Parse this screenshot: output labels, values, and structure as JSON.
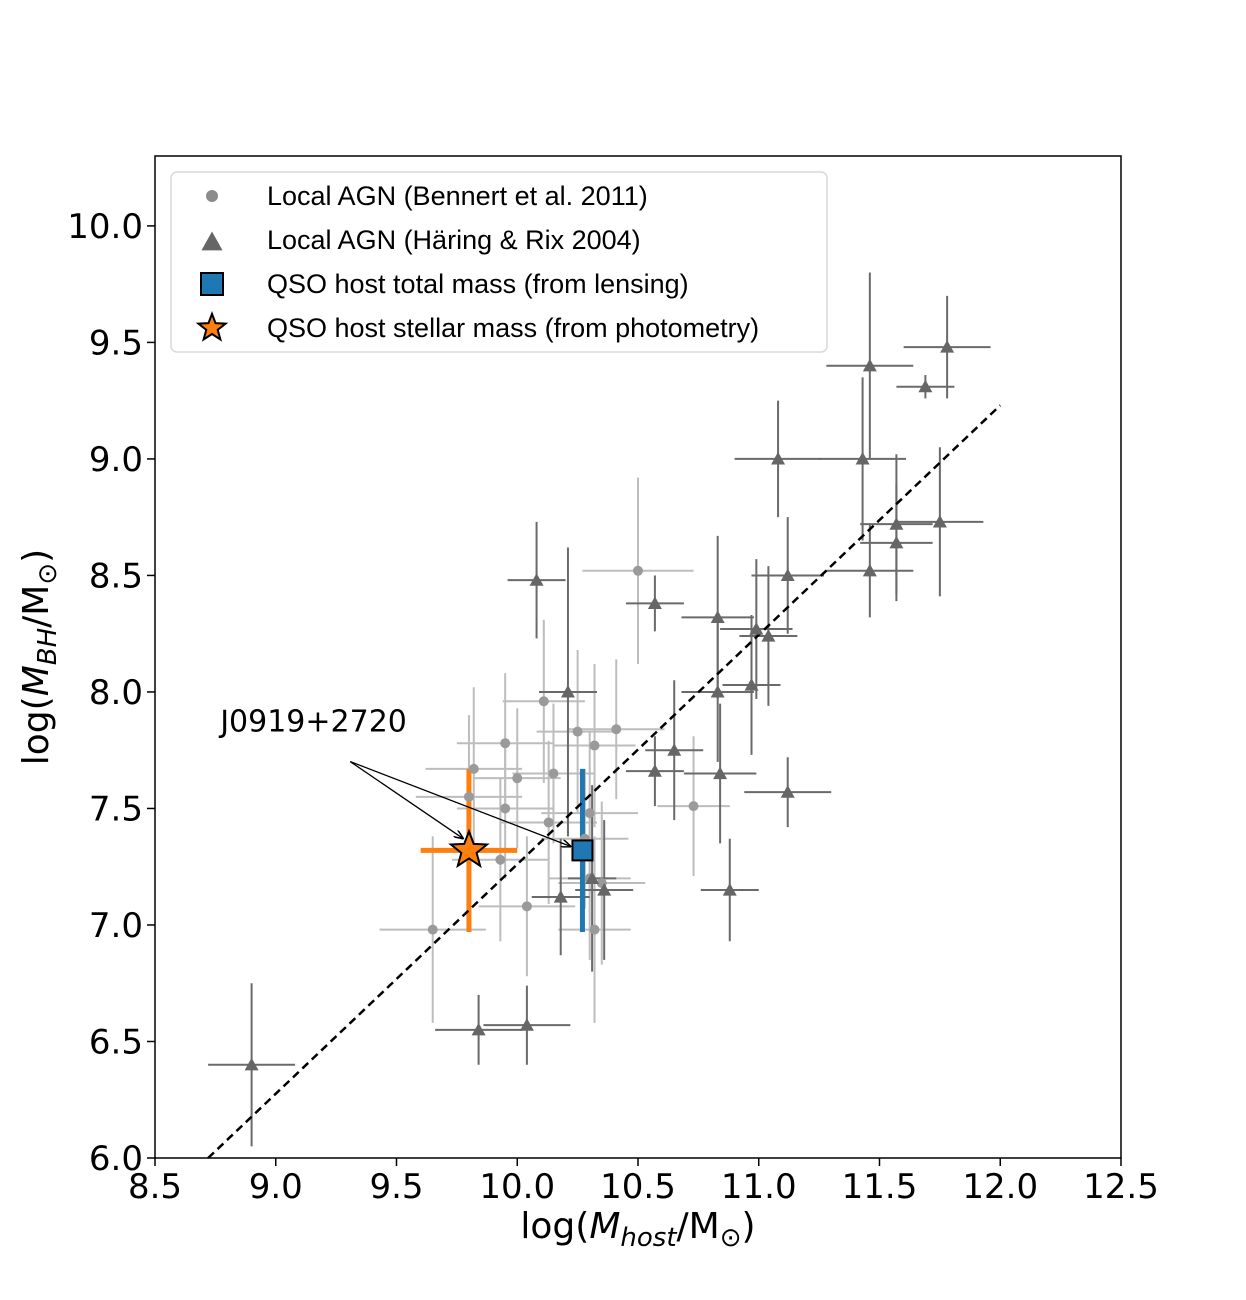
{
  "chart_data": {
    "type": "scatter",
    "xlabel": "log(M_host/M_⊙)",
    "ylabel": "log(M_BH/M_⊙)",
    "xlabel_parts": {
      "pre": "log(",
      "main": "M",
      "sub": "host",
      "post": "/M",
      "post_sub": "⊙",
      "end": ")"
    },
    "ylabel_parts": {
      "pre": "log(",
      "main": "M",
      "sub": "BH",
      "post": "/M",
      "post_sub": "⊙",
      "end": ")"
    },
    "xlim": [
      8.5,
      12.5
    ],
    "ylim": [
      6.0,
      10.3
    ],
    "xticks": [
      "8.5",
      "9.0",
      "9.5",
      "10.0",
      "10.5",
      "11.0",
      "11.5",
      "12.0",
      "12.5"
    ],
    "yticks": [
      "6.0",
      "6.5",
      "7.0",
      "7.5",
      "8.0",
      "8.5",
      "9.0",
      "9.5",
      "10.0"
    ],
    "grid": false,
    "legend_position": "top-left",
    "legend": [
      {
        "label": "Local AGN (Bennert et al. 2011)",
        "marker": "circle",
        "color": "#8c8c8c"
      },
      {
        "label": "Local AGN (Häring & Rix 2004)",
        "marker": "triangle",
        "color": "#666666"
      },
      {
        "label": "QSO host total mass (from lensing)",
        "marker": "square",
        "color": "#1f77b4"
      },
      {
        "label": "QSO host stellar mass (from photometry)",
        "marker": "star",
        "color": "#ff7f0e"
      }
    ],
    "annotation": {
      "text": "J0919+2720",
      "text_x": 8.77,
      "text_y": 7.83
    },
    "relation_line": {
      "style": "dashed",
      "color": "#000000",
      "x": [
        8.72,
        12.0
      ],
      "y": [
        6.0,
        9.23
      ]
    },
    "series": [
      {
        "name": "Local AGN (Bennert et al. 2011)",
        "marker": "circle",
        "color": "#9a9a9a",
        "points": [
          {
            "x": 9.65,
            "y": 6.98,
            "xerr": 0.22,
            "yerr": 0.4
          },
          {
            "x": 9.82,
            "y": 7.67,
            "xerr": 0.2,
            "yerr": 0.35
          },
          {
            "x": 9.8,
            "y": 7.55,
            "xerr": 0.22,
            "yerr": 0.35
          },
          {
            "x": 9.93,
            "y": 7.28,
            "xerr": 0.2,
            "yerr": 0.35
          },
          {
            "x": 9.95,
            "y": 7.5,
            "xerr": 0.2,
            "yerr": 0.3
          },
          {
            "x": 9.95,
            "y": 7.78,
            "xerr": 0.2,
            "yerr": 0.3
          },
          {
            "x": 10.0,
            "y": 7.63,
            "xerr": 0.18,
            "yerr": 0.3
          },
          {
            "x": 10.04,
            "y": 7.08,
            "xerr": 0.2,
            "yerr": 0.3
          },
          {
            "x": 10.11,
            "y": 7.96,
            "xerr": 0.17,
            "yerr": 0.35
          },
          {
            "x": 10.13,
            "y": 7.44,
            "xerr": 0.2,
            "yerr": 0.35
          },
          {
            "x": 10.15,
            "y": 7.65,
            "xerr": 0.17,
            "yerr": 0.3
          },
          {
            "x": 10.25,
            "y": 7.83,
            "xerr": 0.17,
            "yerr": 0.35
          },
          {
            "x": 10.28,
            "y": 7.37,
            "xerr": 0.18,
            "yerr": 0.3
          },
          {
            "x": 10.3,
            "y": 7.48,
            "xerr": 0.2,
            "yerr": 0.35
          },
          {
            "x": 10.32,
            "y": 7.77,
            "xerr": 0.17,
            "yerr": 0.35
          },
          {
            "x": 10.3,
            "y": 7.2,
            "xerr": 0.17,
            "yerr": 0.35
          },
          {
            "x": 10.32,
            "y": 6.98,
            "xerr": 0.15,
            "yerr": 0.4
          },
          {
            "x": 10.35,
            "y": 7.18,
            "xerr": 0.18,
            "yerr": 0.35
          },
          {
            "x": 10.41,
            "y": 7.84,
            "xerr": 0.2,
            "yerr": 0.3
          },
          {
            "x": 10.5,
            "y": 8.52,
            "xerr": 0.23,
            "yerr": 0.4
          },
          {
            "x": 10.73,
            "y": 7.51,
            "xerr": 0.15,
            "yerr": 0.3
          }
        ]
      },
      {
        "name": "Local AGN (Häring & Rix 2004)",
        "marker": "triangle",
        "color": "#666666",
        "points": [
          {
            "x": 8.9,
            "y": 6.4,
            "xerr": 0.18,
            "yerr": 0.35
          },
          {
            "x": 9.84,
            "y": 6.55,
            "xerr": 0.18,
            "yerr": 0.15
          },
          {
            "x": 10.04,
            "y": 6.57,
            "xerr": 0.18,
            "yerr": 0.17
          },
          {
            "x": 10.08,
            "y": 8.48,
            "xerr": 0.12,
            "yerr": 0.25
          },
          {
            "x": 10.18,
            "y": 7.12,
            "xerr": 0.12,
            "yerr": 0.25
          },
          {
            "x": 10.21,
            "y": 8.0,
            "xerr": 0.12,
            "yerr": 0.62
          },
          {
            "x": 10.31,
            "y": 7.2,
            "xerr": 0.1,
            "yerr": 0.4
          },
          {
            "x": 10.36,
            "y": 7.15,
            "xerr": 0.12,
            "yerr": 0.3
          },
          {
            "x": 10.57,
            "y": 8.38,
            "xerr": 0.12,
            "yerr": 0.12
          },
          {
            "x": 10.57,
            "y": 7.66,
            "xerr": 0.12,
            "yerr": 0.15
          },
          {
            "x": 10.65,
            "y": 7.75,
            "xerr": 0.12,
            "yerr": 0.3
          },
          {
            "x": 10.83,
            "y": 8.32,
            "xerr": 0.15,
            "yerr": 0.35
          },
          {
            "x": 10.83,
            "y": 8.0,
            "xerr": 0.15,
            "yerr": 0.3
          },
          {
            "x": 10.84,
            "y": 7.65,
            "xerr": 0.15,
            "yerr": 0.3
          },
          {
            "x": 10.88,
            "y": 7.15,
            "xerr": 0.12,
            "yerr": 0.22
          },
          {
            "x": 10.97,
            "y": 8.03,
            "xerr": 0.12,
            "yerr": 0.3
          },
          {
            "x": 10.99,
            "y": 8.27,
            "xerr": 0.15,
            "yerr": 0.3
          },
          {
            "x": 11.04,
            "y": 8.24,
            "xerr": 0.12,
            "yerr": 0.3
          },
          {
            "x": 11.08,
            "y": 9.0,
            "xerr": 0.18,
            "yerr": 0.25
          },
          {
            "x": 11.12,
            "y": 7.57,
            "xerr": 0.18,
            "yerr": 0.15
          },
          {
            "x": 11.12,
            "y": 8.5,
            "xerr": 0.15,
            "yerr": 0.25
          },
          {
            "x": 11.43,
            "y": 9.0,
            "xerr": 0.18,
            "yerr": 0.35
          },
          {
            "x": 11.46,
            "y": 9.4,
            "xerr": 0.18,
            "yerr": 0.4
          },
          {
            "x": 11.46,
            "y": 8.52,
            "xerr": 0.18,
            "yerr": 0.2
          },
          {
            "x": 11.57,
            "y": 8.72,
            "xerr": 0.15,
            "yerr": 0.3
          },
          {
            "x": 11.57,
            "y": 8.64,
            "xerr": 0.15,
            "yerr": 0.25
          },
          {
            "x": 11.69,
            "y": 9.31,
            "xerr": 0.12,
            "yerr": 0.05
          },
          {
            "x": 11.75,
            "y": 8.73,
            "xerr": 0.18,
            "yerr": 0.32
          },
          {
            "x": 11.78,
            "y": 9.48,
            "xerr": 0.18,
            "yerr": 0.22
          }
        ]
      },
      {
        "name": "QSO host total mass (from lensing)",
        "marker": "square",
        "color": "#1f77b4",
        "points": [
          {
            "x": 10.27,
            "y": 7.32,
            "xerr": 0.0,
            "yerr": 0.35
          }
        ]
      },
      {
        "name": "QSO host stellar mass (from photometry)",
        "marker": "star",
        "color": "#ff7f0e",
        "points": [
          {
            "x": 9.8,
            "y": 7.32,
            "xerr": 0.2,
            "yerr": 0.35
          }
        ]
      }
    ]
  }
}
